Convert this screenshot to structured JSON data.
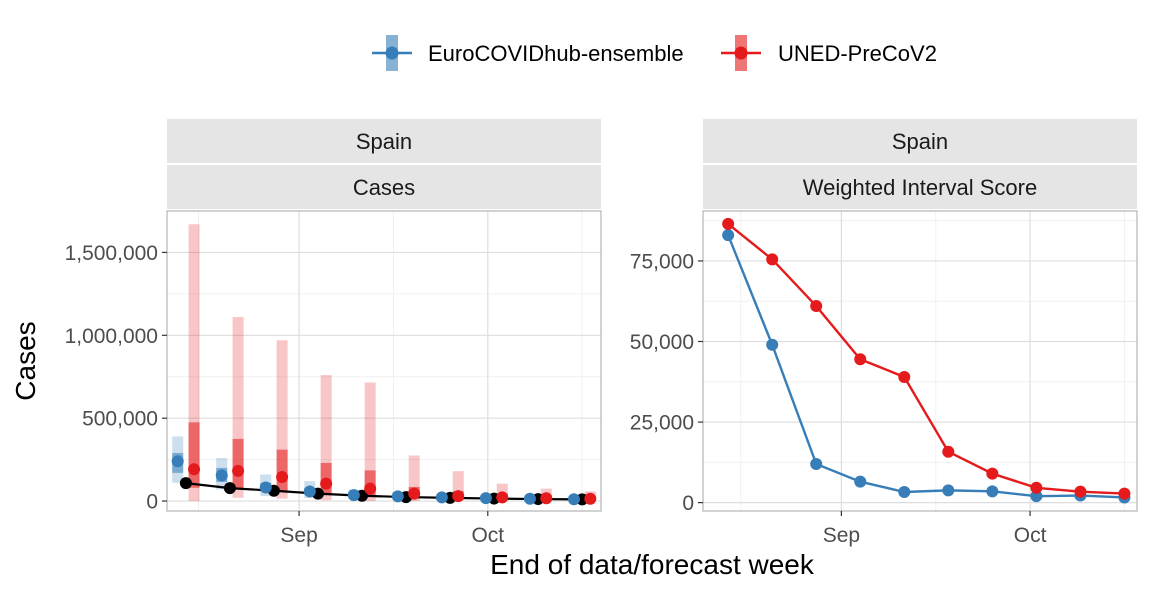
{
  "legend": {
    "items": [
      {
        "label": "EuroCOVIDhub-ensemble",
        "color": "#377EB8"
      },
      {
        "label": "UNED-PreCoV2",
        "color": "#E41A1C"
      }
    ]
  },
  "axes": {
    "xlabel": "End of data/forecast week",
    "ylabel": "Cases"
  },
  "chart_data": [
    {
      "type": "line",
      "facet_location": "Spain",
      "facet_target": "Cases",
      "x_ticks": [
        "Sep",
        "Oct"
      ],
      "y_ticks": [
        "0",
        "500,000",
        "1,000,000",
        "1,500,000"
      ],
      "y_tick_values": [
        0,
        500000,
        1000000,
        1500000
      ],
      "ylim": [
        -60000,
        1750000
      ],
      "x_dates": [
        "2021-08-14",
        "2021-08-21",
        "2021-08-28",
        "2021-09-04",
        "2021-09-11",
        "2021-09-18",
        "2021-09-25",
        "2021-10-02",
        "2021-10-09",
        "2021-10-16"
      ],
      "observed": {
        "color": "#000000",
        "values": [
          108000,
          78000,
          62000,
          45000,
          32000,
          24000,
          19000,
          15000,
          12000,
          10000
        ]
      },
      "series": [
        {
          "name": "EuroCOVIDhub-ensemble",
          "color": "#377EB8",
          "median": [
            240000,
            155000,
            82000,
            58000,
            36000,
            28000,
            22000,
            18000,
            14000,
            11000
          ],
          "inner": [
            [
              170000,
              290000
            ],
            [
              115000,
              200000
            ],
            [
              58000,
              110000
            ],
            [
              40000,
              80000
            ],
            [
              26000,
              48000
            ],
            [
              20000,
              38000
            ],
            [
              15000,
              30000
            ],
            [
              12000,
              25000
            ],
            [
              10000,
              20000
            ],
            [
              8000,
              16000
            ]
          ],
          "outer": [
            [
              110000,
              390000
            ],
            [
              70000,
              260000
            ],
            [
              30000,
              160000
            ],
            [
              18000,
              120000
            ],
            [
              14000,
              70000
            ],
            [
              10000,
              55000
            ],
            [
              8000,
              45000
            ],
            [
              6000,
              38000
            ],
            [
              5000,
              30000
            ],
            [
              4000,
              24000
            ]
          ]
        },
        {
          "name": "UNED-PreCoV2",
          "color": "#E41A1C",
          "median": [
            192000,
            182000,
            145000,
            105000,
            75000,
            45000,
            30000,
            22000,
            17000,
            14000
          ],
          "inner": [
            [
              80000,
              475000
            ],
            [
              70000,
              375000
            ],
            [
              55000,
              310000
            ],
            [
              35000,
              230000
            ],
            [
              25000,
              185000
            ],
            [
              15000,
              85000
            ],
            [
              10000,
              60000
            ],
            [
              8000,
              45000
            ],
            [
              6000,
              35000
            ],
            [
              5000,
              28000
            ]
          ],
          "outer": [
            [
              0,
              1670000
            ],
            [
              20000,
              1110000
            ],
            [
              15000,
              970000
            ],
            [
              5000,
              760000
            ],
            [
              0,
              715000
            ],
            [
              0,
              275000
            ],
            [
              0,
              180000
            ],
            [
              0,
              105000
            ],
            [
              0,
              75000
            ],
            [
              0,
              58000
            ]
          ]
        }
      ]
    },
    {
      "type": "line",
      "facet_location": "Spain",
      "facet_target": "Weighted Interval Score",
      "x_ticks": [
        "Sep",
        "Oct"
      ],
      "y_ticks": [
        "0",
        "25,000",
        "50,000",
        "75,000"
      ],
      "y_tick_values": [
        0,
        25000,
        50000,
        75000
      ],
      "ylim": [
        -2600,
        90500
      ],
      "x_dates": [
        "2021-08-14",
        "2021-08-21",
        "2021-08-28",
        "2021-09-04",
        "2021-09-11",
        "2021-09-18",
        "2021-09-25",
        "2021-10-02",
        "2021-10-09",
        "2021-10-16"
      ],
      "series": [
        {
          "name": "EuroCOVIDhub-ensemble",
          "color": "#377EB8",
          "values": [
            83000,
            49000,
            12000,
            6500,
            3300,
            3800,
            3500,
            2000,
            2200,
            1600
          ]
        },
        {
          "name": "UNED-PreCoV2",
          "color": "#E41A1C",
          "values": [
            86500,
            75500,
            61000,
            44500,
            39000,
            15800,
            9000,
            4600,
            3400,
            2800
          ]
        }
      ]
    }
  ]
}
